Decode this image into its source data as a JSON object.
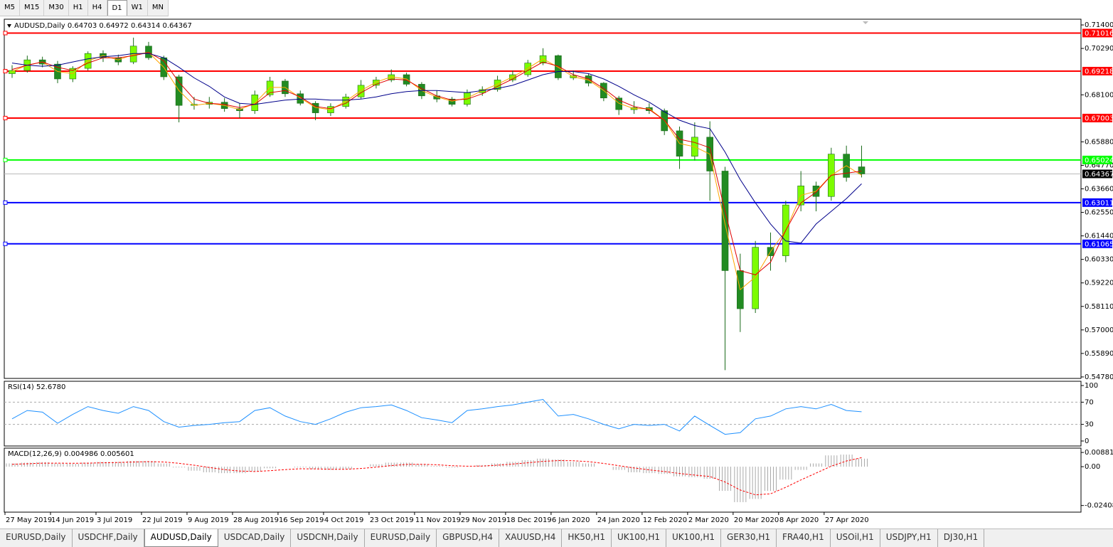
{
  "toolbar": {
    "timeframes": [
      "M5",
      "M15",
      "M30",
      "H1",
      "H4",
      "D1",
      "W1",
      "MN"
    ],
    "active": 5
  },
  "tabs": [
    "EURUSD,Daily",
    "USDCHF,Daily",
    "AUDUSD,Daily",
    "USDCAD,Daily",
    "USDCNH,Daily",
    "EURUSD,Daily",
    "GBPUSD,H4",
    "XAUUSD,H4",
    "HK50,H1",
    "UK100,H1",
    "UK100,H1",
    "GER30,H1",
    "FRA40,H1",
    "USOil,H1",
    "USDJPY,H1",
    "DJ30,H1"
  ],
  "active_tab": 2,
  "chart_data": {
    "type": "candlestick",
    "title": "AUDUSD,Daily  0.64703 0.64972 0.64314 0.64367",
    "categories": [
      "27 May 2019",
      null,
      null,
      "14 Jun 2019",
      null,
      null,
      "3 Jul 2019",
      null,
      null,
      "22 Jul 2019",
      null,
      null,
      "9 Aug 2019",
      null,
      null,
      "28 Aug 2019",
      null,
      null,
      "16 Sep 2019",
      null,
      null,
      "4 Oct 2019",
      null,
      null,
      "23 Oct 2019",
      null,
      null,
      "11 Nov 2019",
      null,
      null,
      "29 Nov 2019",
      null,
      null,
      "18 Dec 2019",
      null,
      null,
      "6 Jan 2020",
      null,
      null,
      "24 Jan 2020",
      null,
      null,
      "12 Feb 2020",
      null,
      null,
      "2 Mar 2020",
      null,
      null,
      "20 Mar 2020",
      null,
      null,
      "8 Apr 2020",
      null,
      null,
      "27 Apr 2020",
      null,
      null
    ],
    "open": [
      0.691,
      0.6925,
      0.6975,
      0.6955,
      0.6885,
      0.6935,
      0.7005,
      0.6985,
      0.6965,
      0.704,
      0.6985,
      0.6895,
      0.676,
      0.6765,
      0.6775,
      0.6745,
      0.6735,
      0.681,
      0.6875,
      0.6815,
      0.677,
      0.6725,
      0.6755,
      0.68,
      0.6855,
      0.688,
      0.6905,
      0.686,
      0.6805,
      0.679,
      0.6765,
      0.682,
      0.6835,
      0.688,
      0.6905,
      0.696,
      0.6995,
      0.689,
      0.69,
      0.6865,
      0.6795,
      0.674,
      0.675,
      0.6735,
      0.664,
      0.652,
      0.661,
      0.645,
      0.598,
      0.58,
      0.609,
      0.605,
      0.629,
      0.638,
      0.633,
      0.653,
      0.647
    ],
    "high": [
      0.695,
      0.6995,
      0.699,
      0.697,
      0.6945,
      0.7015,
      0.702,
      0.7,
      0.708,
      0.706,
      0.6995,
      0.6905,
      0.68,
      0.68,
      0.6795,
      0.677,
      0.683,
      0.6895,
      0.6885,
      0.683,
      0.678,
      0.677,
      0.6815,
      0.688,
      0.6895,
      0.693,
      0.6915,
      0.687,
      0.683,
      0.68,
      0.6835,
      0.685,
      0.69,
      0.6925,
      0.6975,
      0.703,
      0.7,
      0.6925,
      0.691,
      0.687,
      0.6805,
      0.678,
      0.677,
      0.6745,
      0.666,
      0.668,
      0.6685,
      0.647,
      0.606,
      0.612,
      0.616,
      0.631,
      0.645,
      0.64,
      0.656,
      0.657,
      0.657
    ],
    "low": [
      0.689,
      0.6915,
      0.694,
      0.6865,
      0.687,
      0.6925,
      0.6965,
      0.695,
      0.6955,
      0.6975,
      0.688,
      0.668,
      0.674,
      0.6745,
      0.673,
      0.67,
      0.672,
      0.68,
      0.68,
      0.676,
      0.669,
      0.671,
      0.6745,
      0.679,
      0.684,
      0.687,
      0.685,
      0.679,
      0.6775,
      0.6755,
      0.6755,
      0.6805,
      0.6825,
      0.687,
      0.6895,
      0.695,
      0.688,
      0.688,
      0.685,
      0.678,
      0.6715,
      0.672,
      0.672,
      0.662,
      0.646,
      0.65,
      0.631,
      0.551,
      0.569,
      0.578,
      0.598,
      0.602,
      0.626,
      0.626,
      0.631,
      0.64,
      0.642
    ],
    "close": [
      0.6925,
      0.6975,
      0.6955,
      0.6885,
      0.6935,
      0.7005,
      0.6985,
      0.6965,
      0.704,
      0.6985,
      0.6895,
      0.676,
      0.6765,
      0.6775,
      0.6745,
      0.6735,
      0.681,
      0.6875,
      0.6815,
      0.677,
      0.6725,
      0.6755,
      0.68,
      0.6855,
      0.688,
      0.6905,
      0.686,
      0.6805,
      0.679,
      0.6765,
      0.682,
      0.6835,
      0.688,
      0.6905,
      0.696,
      0.6995,
      0.689,
      0.69,
      0.6865,
      0.6795,
      0.674,
      0.675,
      0.6735,
      0.664,
      0.652,
      0.661,
      0.645,
      0.598,
      0.58,
      0.609,
      0.605,
      0.629,
      0.638,
      0.633,
      0.653,
      0.642,
      0.64367
    ],
    "up_color": "#7cfc00",
    "down_color": "#228b22",
    "wick_color": "#1a6b1a",
    "ylim": [
      0.5471,
      0.7167
    ],
    "yticks": [
      {
        "value": 0.714,
        "label": "0.71400"
      },
      {
        "value": 0.7029,
        "label": "0.70290"
      },
      {
        "value": 0.681,
        "label": "0.68100"
      },
      {
        "value": 0.6588,
        "label": "0.65880"
      },
      {
        "value": 0.6477,
        "label": "0.64770"
      },
      {
        "value": 0.6366,
        "label": "0.63660"
      },
      {
        "value": 0.6255,
        "label": "0.62550"
      },
      {
        "value": 0.6144,
        "label": "0.61440"
      },
      {
        "value": 0.6033,
        "label": "0.60330"
      },
      {
        "value": 0.5922,
        "label": "0.59220"
      },
      {
        "value": 0.5811,
        "label": "0.58110"
      },
      {
        "value": 0.57,
        "label": "0.57000"
      },
      {
        "value": 0.5589,
        "label": "0.55890"
      },
      {
        "value": 0.5478,
        "label": "0.54780"
      }
    ],
    "moving_averages": [
      {
        "color": "#ffa500",
        "values": [
          0.692,
          0.695,
          0.6965,
          0.692,
          0.691,
          0.697,
          0.6995,
          0.6975,
          0.7,
          0.701,
          0.694,
          0.683,
          0.676,
          0.677,
          0.676,
          0.674,
          0.677,
          0.6845,
          0.6845,
          0.6795,
          0.675,
          0.674,
          0.678,
          0.683,
          0.687,
          0.6895,
          0.6885,
          0.683,
          0.68,
          0.678,
          0.6795,
          0.683,
          0.686,
          0.6895,
          0.6935,
          0.698,
          0.694,
          0.6895,
          0.688,
          0.683,
          0.677,
          0.6745,
          0.6745,
          0.669,
          0.658,
          0.6565,
          0.653,
          0.62,
          0.589,
          0.595,
          0.607,
          0.617,
          0.6335,
          0.6355,
          0.643,
          0.6475,
          0.643
        ]
      },
      {
        "color": "#e00000",
        "values": [
          0.693,
          0.695,
          0.6965,
          0.694,
          0.6925,
          0.696,
          0.6985,
          0.6985,
          0.6995,
          0.701,
          0.697,
          0.687,
          0.679,
          0.677,
          0.6765,
          0.675,
          0.6765,
          0.682,
          0.683,
          0.68,
          0.6755,
          0.6745,
          0.677,
          0.682,
          0.686,
          0.6885,
          0.688,
          0.684,
          0.6805,
          0.6785,
          0.679,
          0.6815,
          0.685,
          0.6885,
          0.6925,
          0.6965,
          0.6945,
          0.6905,
          0.6885,
          0.684,
          0.6785,
          0.6755,
          0.674,
          0.669,
          0.66,
          0.6585,
          0.656,
          0.626,
          0.598,
          0.596,
          0.602,
          0.617,
          0.63,
          0.635,
          0.643,
          0.644,
          0.645
        ]
      },
      {
        "color": "#00008b",
        "values": [
          0.696,
          0.695,
          0.6945,
          0.695,
          0.6965,
          0.698,
          0.699,
          0.6995,
          0.7005,
          0.7005,
          0.6985,
          0.694,
          0.689,
          0.685,
          0.68,
          0.677,
          0.6765,
          0.6775,
          0.6785,
          0.679,
          0.679,
          0.6785,
          0.6785,
          0.679,
          0.68,
          0.6815,
          0.6825,
          0.683,
          0.683,
          0.6825,
          0.682,
          0.683,
          0.684,
          0.6855,
          0.688,
          0.6905,
          0.692,
          0.692,
          0.691,
          0.6885,
          0.685,
          0.681,
          0.6775,
          0.673,
          0.669,
          0.6665,
          0.665,
          0.654,
          0.641,
          0.63,
          0.62,
          0.612,
          0.611,
          0.62,
          0.626,
          0.632,
          0.639
        ]
      }
    ],
    "levels": [
      {
        "value": 0.71016,
        "color": "#ff0000"
      },
      {
        "value": 0.69218,
        "color": "#ff0000"
      },
      {
        "value": 0.67003,
        "color": "#ff0000"
      },
      {
        "value": 0.65024,
        "color": "#00ff00"
      },
      {
        "value": 0.63011,
        "color": "#0000ff"
      },
      {
        "value": 0.61065,
        "color": "#0000ff"
      }
    ],
    "last_price": 0.64367,
    "indicators": [
      {
        "type": "line",
        "title": "RSI(14) 52.6780",
        "color": "#1e90ff",
        "values": [
          40,
          55,
          52,
          32,
          48,
          62,
          55,
          50,
          62,
          55,
          35,
          25,
          28,
          30,
          33,
          35,
          55,
          60,
          45,
          35,
          30,
          40,
          52,
          60,
          62,
          65,
          55,
          42,
          38,
          33,
          55,
          58,
          62,
          65,
          70,
          75,
          45,
          48,
          40,
          30,
          22,
          30,
          28,
          30,
          18,
          45,
          28,
          12,
          15,
          40,
          45,
          58,
          62,
          58,
          66,
          55,
          52.678
        ],
        "ylim": [
          -9,
          107.7
        ],
        "yticks": [
          100,
          70,
          30,
          0
        ]
      },
      {
        "type": "macd",
        "title": "MACD(12,26,9) 0.004986 0.005601",
        "histogram": {
          "color": "#a9a9a9",
          "values": [
            0.002,
            0.0025,
            0.0028,
            0.002,
            0.0018,
            0.0025,
            0.003,
            0.003,
            0.0035,
            0.0035,
            0.002,
            -0.0005,
            -0.0025,
            -0.0035,
            -0.004,
            -0.004,
            -0.003,
            -0.001,
            0.0,
            -0.0005,
            -0.0015,
            -0.002,
            -0.0015,
            0.0,
            0.0015,
            0.0025,
            0.0025,
            0.0015,
            0.0005,
            -0.0005,
            0.0,
            0.001,
            0.002,
            0.003,
            0.004,
            0.005,
            0.0045,
            0.003,
            0.002,
            0.0,
            -0.002,
            -0.0035,
            -0.004,
            -0.0045,
            -0.006,
            -0.0065,
            -0.0075,
            -0.015,
            -0.022,
            -0.02,
            -0.015,
            -0.008,
            -0.002,
            0.002,
            0.007,
            0.0075,
            0.004986
          ]
        },
        "signal": {
          "color": "#ff0000",
          "values": [
            0.0015,
            0.0018,
            0.0022,
            0.0022,
            0.0021,
            0.0022,
            0.0024,
            0.0026,
            0.0029,
            0.0031,
            0.0029,
            0.0021,
            0.0009,
            -0.0005,
            -0.0018,
            -0.0027,
            -0.003,
            -0.0025,
            -0.0018,
            -0.0013,
            -0.0014,
            -0.0016,
            -0.0016,
            -0.0011,
            -0.0003,
            0.0007,
            0.0014,
            0.0015,
            0.0012,
            0.0006,
            0.0003,
            0.0004,
            0.0009,
            0.0016,
            0.0024,
            0.0033,
            0.0038,
            0.0037,
            0.0031,
            0.002,
            0.0006,
            -0.0008,
            -0.002,
            -0.003,
            -0.0042,
            -0.0052,
            -0.0061,
            -0.0095,
            -0.0145,
            -0.0175,
            -0.0168,
            -0.0128,
            -0.0082,
            -0.004,
            0.0003,
            0.0035,
            0.005601
          ]
        },
        "ylim": [
          -0.0282,
          0.0115
        ],
        "yticks": [
          0.008815,
          {
            "value": 0,
            "label": "0.00"
          },
          -0.024082
        ]
      }
    ]
  }
}
